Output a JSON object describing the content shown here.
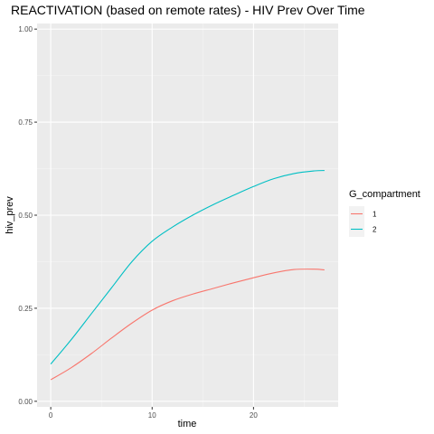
{
  "chart_data": {
    "type": "line",
    "title": "REACTIVATION (based on remote rates) - HIV Prev Over Time",
    "xlabel": "time",
    "ylabel": "hiv_prev",
    "xlim": [
      -1.35,
      28.35
    ],
    "ylim": [
      -0.015,
      1.015
    ],
    "x_ticks": [
      0,
      10,
      20
    ],
    "y_ticks": [
      0.0,
      0.25,
      0.5,
      0.75,
      1.0
    ],
    "y_tick_labels": [
      "0.00",
      "0.25",
      "0.50",
      "0.75",
      "1.00"
    ],
    "grid": true,
    "legend": {
      "title": "G_compartment",
      "placement": "right"
    },
    "series": [
      {
        "name": "1",
        "color": "#F8766D",
        "x": [
          0,
          2,
          4,
          6,
          8,
          10,
          12,
          14,
          16,
          18,
          20,
          22,
          24,
          26,
          27
        ],
        "y": [
          0.058,
          0.09,
          0.128,
          0.17,
          0.21,
          0.245,
          0.27,
          0.288,
          0.303,
          0.318,
          0.332,
          0.345,
          0.354,
          0.355,
          0.353
        ]
      },
      {
        "name": "2",
        "color": "#00BFC4",
        "x": [
          0,
          2,
          4,
          6,
          8,
          10,
          12,
          14,
          16,
          18,
          20,
          22,
          24,
          26,
          27
        ],
        "y": [
          0.1,
          0.165,
          0.235,
          0.305,
          0.375,
          0.43,
          0.468,
          0.5,
          0.528,
          0.553,
          0.577,
          0.598,
          0.612,
          0.619,
          0.62
        ]
      }
    ]
  }
}
